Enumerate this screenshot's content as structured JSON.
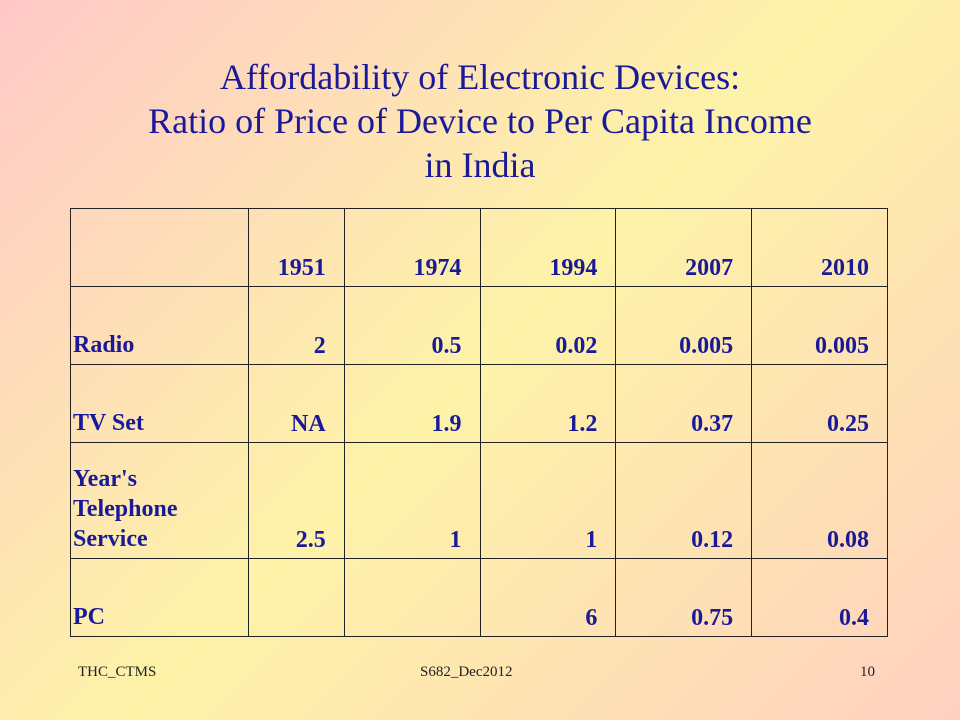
{
  "title": {
    "line1": "Affordability of Electronic Devices:",
    "line2": "Ratio of Price of Device to Per Capita Income",
    "line3": "in India"
  },
  "table": {
    "header": [
      "",
      "1951",
      "1974",
      "1994",
      "2007",
      "2010"
    ],
    "rows": [
      {
        "label": "Radio",
        "cells": [
          "2",
          "0.5",
          "0.02",
          "0.005",
          "0.005"
        ]
      },
      {
        "label": "TV Set",
        "cells": [
          "NA",
          "1.9",
          "1.2",
          "0.37",
          "0.25"
        ]
      },
      {
        "label_lines": [
          "Year's",
          "Telephone",
          "Service"
        ],
        "cells": [
          "2.5",
          "1",
          "1",
          "0.12",
          "0.08"
        ]
      },
      {
        "label": "PC",
        "cells": [
          "",
          "",
          "6",
          "0.75",
          "0.4"
        ]
      }
    ]
  },
  "footer": {
    "left": "THC_CTMS",
    "center": "S682_Dec2012",
    "page": "10"
  },
  "colors": {
    "text": "#1a1a99",
    "background_pink": "#ffc8c8",
    "background_yellow": "#fdf3a8"
  }
}
